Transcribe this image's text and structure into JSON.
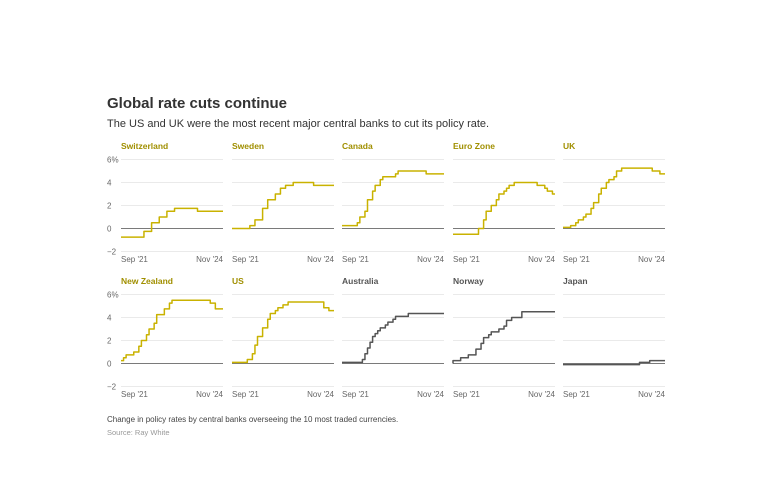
{
  "title": "Global rate cuts continue",
  "subtitle": "The US and UK were the most recent major central banks to cut its policy rate.",
  "note": "Change in policy rates by central banks overseeing the 10 most traded currencies.",
  "source": "Source: Ray White",
  "colors": {
    "highlight": "#c9b200",
    "highlight_title": "#a08f00",
    "muted": "#555555",
    "grid": "#e3e3e3",
    "zero": "#7a7a7a"
  },
  "chart_data": {
    "type": "line",
    "layout": "small-multiples 5x2",
    "ylim": [
      -2,
      6
    ],
    "yticks": [
      -2,
      0,
      2,
      4,
      6
    ],
    "ytick_labels": [
      "−2",
      "0",
      "2",
      "4",
      "6%"
    ],
    "xlim": [
      "2021-09",
      "2025-01"
    ],
    "xtick_labels": [
      "Sep '21",
      "Nov '24"
    ],
    "series": [
      {
        "name": "Switzerland",
        "highlight": true,
        "points": [
          [
            "2021-09",
            -0.75
          ],
          [
            "2022-06",
            -0.25
          ],
          [
            "2022-09",
            0.5
          ],
          [
            "2022-12",
            1.0
          ],
          [
            "2023-03",
            1.5
          ],
          [
            "2023-06",
            1.75
          ],
          [
            "2024-03",
            1.5
          ],
          [
            "2025-01",
            1.5
          ]
        ]
      },
      {
        "name": "Sweden",
        "highlight": true,
        "points": [
          [
            "2021-09",
            0
          ],
          [
            "2022-04",
            0.25
          ],
          [
            "2022-06",
            0.75
          ],
          [
            "2022-09",
            1.75
          ],
          [
            "2022-11",
            2.5
          ],
          [
            "2023-02",
            3.0
          ],
          [
            "2023-04",
            3.5
          ],
          [
            "2023-06",
            3.75
          ],
          [
            "2023-09",
            4.0
          ],
          [
            "2024-05",
            3.75
          ],
          [
            "2025-01",
            3.75
          ]
        ]
      },
      {
        "name": "Canada",
        "highlight": true,
        "points": [
          [
            "2021-09",
            0.25
          ],
          [
            "2022-03",
            0.5
          ],
          [
            "2022-04",
            1.0
          ],
          [
            "2022-06",
            1.5
          ],
          [
            "2022-07",
            2.5
          ],
          [
            "2022-09",
            3.25
          ],
          [
            "2022-10",
            3.75
          ],
          [
            "2022-12",
            4.25
          ],
          [
            "2023-01",
            4.5
          ],
          [
            "2023-06",
            4.75
          ],
          [
            "2023-07",
            5.0
          ],
          [
            "2024-06",
            4.75
          ],
          [
            "2025-01",
            4.75
          ]
        ]
      },
      {
        "name": "Euro Zone",
        "highlight": true,
        "points": [
          [
            "2021-09",
            -0.5
          ],
          [
            "2022-07",
            0
          ],
          [
            "2022-09",
            0.75
          ],
          [
            "2022-10",
            1.5
          ],
          [
            "2022-12",
            2.0
          ],
          [
            "2023-02",
            2.5
          ],
          [
            "2023-03",
            3.0
          ],
          [
            "2023-05",
            3.25
          ],
          [
            "2023-06",
            3.5
          ],
          [
            "2023-07",
            3.75
          ],
          [
            "2023-09",
            4.0
          ],
          [
            "2024-06",
            3.75
          ],
          [
            "2024-09",
            3.5
          ],
          [
            "2024-10",
            3.25
          ],
          [
            "2024-12",
            3.0
          ],
          [
            "2025-01",
            3.0
          ]
        ]
      },
      {
        "name": "UK",
        "highlight": true,
        "points": [
          [
            "2021-09",
            0.1
          ],
          [
            "2021-12",
            0.25
          ],
          [
            "2022-02",
            0.5
          ],
          [
            "2022-03",
            0.75
          ],
          [
            "2022-05",
            1.0
          ],
          [
            "2022-06",
            1.25
          ],
          [
            "2022-08",
            1.75
          ],
          [
            "2022-09",
            2.25
          ],
          [
            "2022-11",
            3.0
          ],
          [
            "2022-12",
            3.5
          ],
          [
            "2023-02",
            4.0
          ],
          [
            "2023-03",
            4.25
          ],
          [
            "2023-05",
            4.5
          ],
          [
            "2023-06",
            5.0
          ],
          [
            "2023-08",
            5.25
          ],
          [
            "2024-08",
            5.0
          ],
          [
            "2024-11",
            4.75
          ],
          [
            "2025-01",
            4.75
          ]
        ]
      },
      {
        "name": "New Zealand",
        "highlight": true,
        "points": [
          [
            "2021-09",
            0.25
          ],
          [
            "2021-10",
            0.5
          ],
          [
            "2021-11",
            0.75
          ],
          [
            "2022-02",
            1.0
          ],
          [
            "2022-04",
            1.5
          ],
          [
            "2022-05",
            2.0
          ],
          [
            "2022-07",
            2.5
          ],
          [
            "2022-08",
            3.0
          ],
          [
            "2022-10",
            3.5
          ],
          [
            "2022-11",
            4.25
          ],
          [
            "2023-02",
            4.75
          ],
          [
            "2023-04",
            5.25
          ],
          [
            "2023-05",
            5.5
          ],
          [
            "2024-08",
            5.25
          ],
          [
            "2024-10",
            4.75
          ],
          [
            "2025-01",
            4.75
          ]
        ]
      },
      {
        "name": "US",
        "highlight": true,
        "points": [
          [
            "2021-09",
            0.1
          ],
          [
            "2022-03",
            0.35
          ],
          [
            "2022-05",
            0.85
          ],
          [
            "2022-06",
            1.6
          ],
          [
            "2022-07",
            2.35
          ],
          [
            "2022-09",
            3.1
          ],
          [
            "2022-11",
            3.85
          ],
          [
            "2022-12",
            4.35
          ],
          [
            "2023-02",
            4.6
          ],
          [
            "2023-03",
            4.85
          ],
          [
            "2023-05",
            5.1
          ],
          [
            "2023-07",
            5.35
          ],
          [
            "2024-09",
            4.85
          ],
          [
            "2024-11",
            4.6
          ],
          [
            "2025-01",
            4.6
          ]
        ]
      },
      {
        "name": "Australia",
        "highlight": false,
        "points": [
          [
            "2021-09",
            0.1
          ],
          [
            "2022-05",
            0.35
          ],
          [
            "2022-06",
            0.85
          ],
          [
            "2022-07",
            1.35
          ],
          [
            "2022-08",
            1.85
          ],
          [
            "2022-09",
            2.35
          ],
          [
            "2022-10",
            2.6
          ],
          [
            "2022-11",
            2.85
          ],
          [
            "2022-12",
            3.1
          ],
          [
            "2023-02",
            3.35
          ],
          [
            "2023-03",
            3.6
          ],
          [
            "2023-05",
            3.85
          ],
          [
            "2023-06",
            4.1
          ],
          [
            "2023-11",
            4.35
          ],
          [
            "2025-01",
            4.35
          ]
        ]
      },
      {
        "name": "Norway",
        "highlight": false,
        "points": [
          [
            "2021-09",
            0
          ],
          [
            "2021-09",
            0.25
          ],
          [
            "2021-12",
            0.5
          ],
          [
            "2022-03",
            0.75
          ],
          [
            "2022-06",
            1.25
          ],
          [
            "2022-08",
            1.75
          ],
          [
            "2022-09",
            2.25
          ],
          [
            "2022-11",
            2.5
          ],
          [
            "2022-12",
            2.75
          ],
          [
            "2023-03",
            3.0
          ],
          [
            "2023-05",
            3.25
          ],
          [
            "2023-06",
            3.75
          ],
          [
            "2023-08",
            4.0
          ],
          [
            "2023-12",
            4.5
          ],
          [
            "2025-01",
            4.5
          ]
        ]
      },
      {
        "name": "Japan",
        "highlight": false,
        "points": [
          [
            "2021-09",
            -0.1
          ],
          [
            "2024-03",
            0.1
          ],
          [
            "2024-07",
            0.25
          ],
          [
            "2025-01",
            0.25
          ]
        ]
      }
    ]
  }
}
